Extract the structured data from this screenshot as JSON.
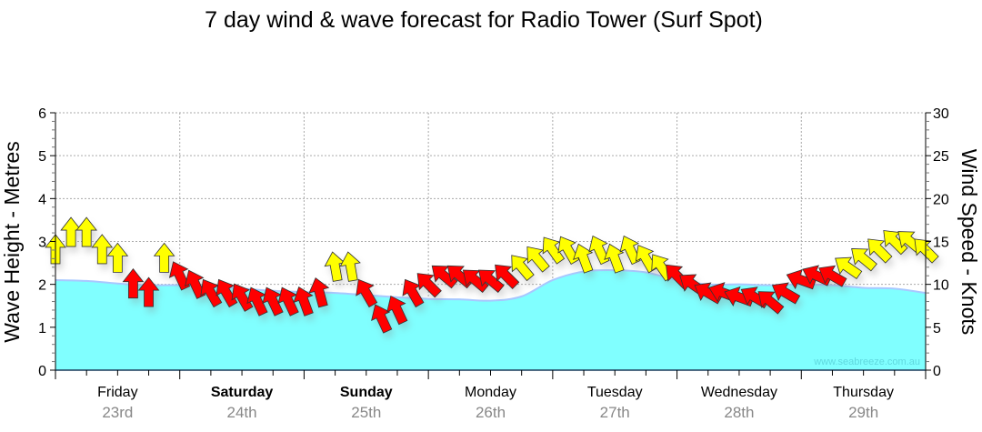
{
  "chart_data": {
    "type": "area",
    "title": "7 day wind & wave forecast for Radio Tower (Surf Spot)",
    "ylabel": "Wave Height - Metres",
    "y2label": "Wind Speed - Knots",
    "ylim": [
      0,
      6
    ],
    "y2lim": [
      0,
      30
    ],
    "yticks": [
      "0",
      "1",
      "2",
      "3",
      "4",
      "5",
      "6"
    ],
    "y2ticks": [
      "0",
      "5",
      "10",
      "15",
      "20",
      "25",
      "30"
    ],
    "grid": true,
    "watermark": "www.seabreeze.com.au",
    "days": [
      {
        "name": "Friday",
        "date": "23rd",
        "bold": false
      },
      {
        "name": "Saturday",
        "date": "24th",
        "bold": true
      },
      {
        "name": "Sunday",
        "date": "25th",
        "bold": true
      },
      {
        "name": "Monday",
        "date": "26th",
        "bold": false
      },
      {
        "name": "Tuesday",
        "date": "27th",
        "bold": false
      },
      {
        "name": "Wednesday",
        "date": "28th",
        "bold": false
      },
      {
        "name": "Thursday",
        "date": "29th",
        "bold": false
      }
    ],
    "wave_height_m": {
      "interval_hours": 6,
      "values": [
        2.1,
        2.08,
        2.02,
        1.98,
        1.98,
        1.95,
        1.9,
        1.85,
        1.82,
        1.8,
        1.75,
        1.7,
        1.66,
        1.65,
        1.62,
        1.72,
        2.1,
        2.3,
        2.33,
        2.28,
        2.1,
        2.0,
        2.0,
        1.98,
        2.0,
        1.98,
        1.92,
        1.9,
        1.8
      ]
    },
    "wind": {
      "interval_hours": 3,
      "yellow_threshold_knots": 12,
      "colors": {
        "strong": "#ffff00",
        "light": "#ff0000",
        "wave": "#80ffff"
      },
      "speed_knots": [
        14,
        16,
        16,
        14,
        13,
        10,
        9,
        13,
        11,
        10,
        9,
        9,
        8.5,
        8,
        8,
        8,
        8,
        9,
        12,
        12,
        9,
        6,
        7,
        9,
        10,
        11,
        11,
        10.5,
        10.5,
        11,
        12,
        13,
        14,
        14,
        13,
        14,
        13,
        14,
        13,
        12,
        11,
        10,
        9,
        9,
        8.5,
        8.5,
        8,
        9,
        10.5,
        11,
        11,
        12,
        13,
        14,
        15,
        15,
        14
      ],
      "heading_deg": [
        0,
        0,
        0,
        0,
        0,
        0,
        0,
        0,
        -25,
        -25,
        -30,
        -30,
        -30,
        -25,
        -25,
        -25,
        -20,
        -15,
        -10,
        -10,
        -30,
        -25,
        -25,
        -30,
        -45,
        -50,
        -50,
        -50,
        -50,
        -45,
        -40,
        -40,
        -35,
        -30,
        -20,
        -25,
        -20,
        -25,
        -30,
        -35,
        -45,
        -55,
        -60,
        -70,
        -70,
        -60,
        -50,
        -60,
        -70,
        -65,
        -60,
        -55,
        -50,
        -45,
        -45,
        -50,
        -45
      ]
    }
  }
}
